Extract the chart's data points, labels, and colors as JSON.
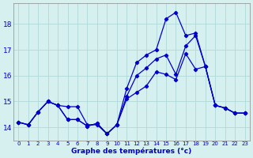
{
  "xlabel": "Graphe des températures (°c)",
  "background_color": "#d6f0f0",
  "grid_color": "#b0d8d8",
  "line_color": "#0000cc",
  "x_labels": [
    "0",
    "1",
    "2",
    "3",
    "4",
    "5",
    "6",
    "7",
    "8",
    "9",
    "10",
    "11",
    "12",
    "13",
    "14",
    "15",
    "16",
    "17",
    "18",
    "19",
    "20",
    "21",
    "22",
    "23"
  ],
  "ylim": [
    13.5,
    18.8
  ],
  "yticks": [
    14,
    15,
    16,
    17,
    18
  ],
  "s1": [
    14.2,
    14.1,
    14.6,
    15.0,
    14.85,
    14.8,
    14.8,
    14.1,
    14.1,
    13.75,
    14.1,
    15.5,
    16.5,
    16.8,
    17.0,
    18.2,
    18.45,
    17.55,
    17.65,
    16.35,
    14.85,
    14.75,
    14.55,
    14.55
  ],
  "s2": [
    14.2,
    14.1,
    14.6,
    15.0,
    14.85,
    14.3,
    14.3,
    14.05,
    14.15,
    13.75,
    14.1,
    15.2,
    16.0,
    16.3,
    16.65,
    16.8,
    16.05,
    17.15,
    17.55,
    16.35,
    14.85,
    14.75,
    14.55,
    14.55
  ],
  "s3": [
    14.2,
    14.1,
    14.6,
    15.0,
    14.85,
    14.3,
    14.3,
    14.05,
    14.15,
    13.75,
    14.1,
    15.1,
    15.35,
    15.6,
    16.15,
    16.05,
    15.85,
    16.85,
    16.25,
    16.35,
    14.85,
    14.75,
    14.55,
    14.55
  ]
}
